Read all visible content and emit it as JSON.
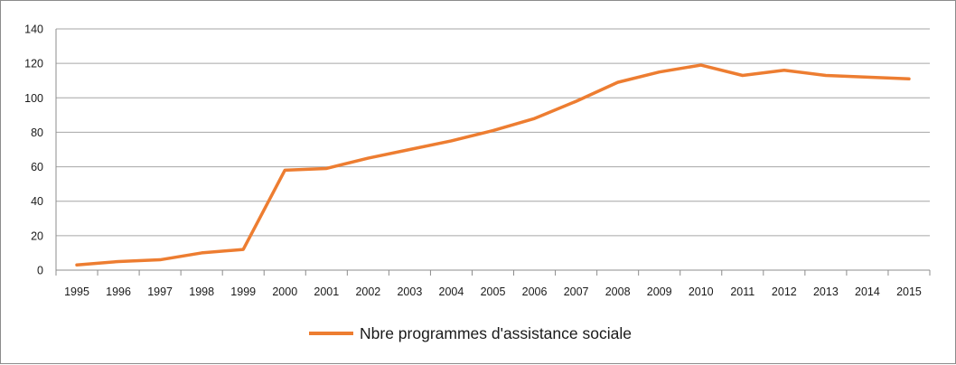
{
  "chart_data": {
    "type": "line",
    "x": [
      "1995",
      "1996",
      "1997",
      "1998",
      "1999",
      "2000",
      "2001",
      "2002",
      "2003",
      "2004",
      "2005",
      "2006",
      "2007",
      "2008",
      "2009",
      "2010",
      "2011",
      "2012",
      "2013",
      "2014",
      "2015"
    ],
    "series": [
      {
        "name": "Nbre programmes d'assistance sociale",
        "color": "#ed7d31",
        "values": [
          3,
          5,
          6,
          10,
          12,
          58,
          59,
          65,
          70,
          75,
          81,
          88,
          98,
          109,
          115,
          119,
          113,
          116,
          113,
          112,
          111
        ]
      }
    ],
    "ylim": [
      0,
      140
    ],
    "yticks": [
      0,
      20,
      40,
      60,
      80,
      100,
      120,
      140
    ],
    "grid": true,
    "legend_position": "bottom",
    "title": "",
    "xlabel": "",
    "ylabel": ""
  }
}
